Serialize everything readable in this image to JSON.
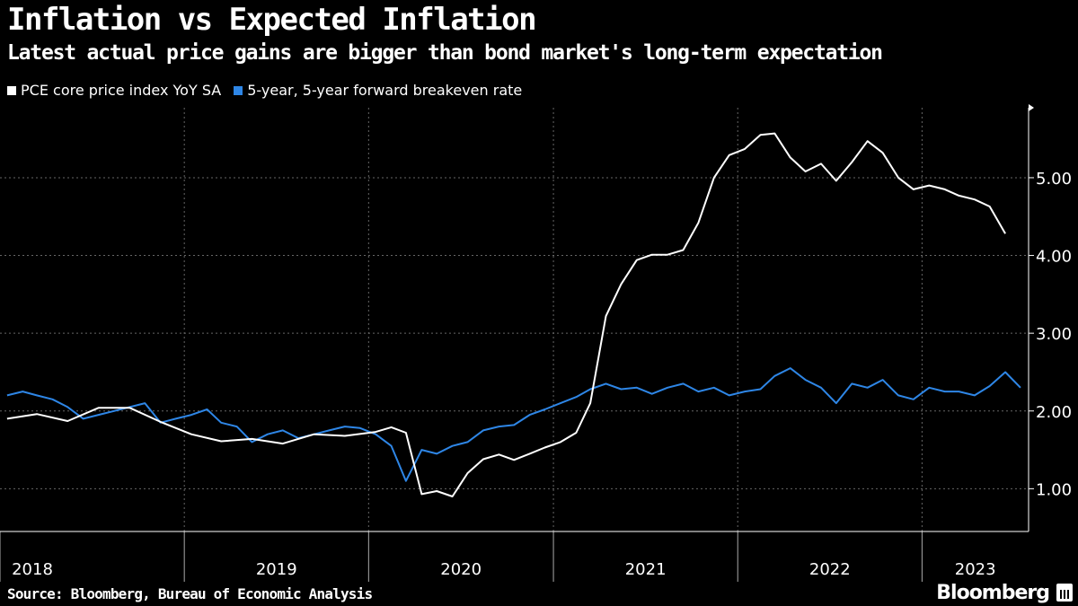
{
  "title": "Inflation vs Expected Inflation",
  "subtitle": "Latest actual price gains are bigger than bond market's long-term expectation",
  "source": "Source: Bloomberg, Bureau of Economic Analysis",
  "brand": "Bloomberg",
  "colors": {
    "pce": "#ffffff",
    "breakeven": "#2e86e6",
    "grid": "#666666",
    "background": "#000000"
  },
  "chart_data": {
    "type": "line",
    "xlabel": "",
    "ylabel": "",
    "xlim": [
      "2018-01-01",
      "2023-07-31"
    ],
    "ylim": [
      0.45,
      5.9
    ],
    "y_ticks": [
      1.0,
      2.0,
      3.0,
      4.0,
      5.0
    ],
    "y_tick_labels": [
      "1.00",
      "2.00",
      "3.00",
      "4.00",
      "5.00"
    ],
    "x_ticks": [
      "2018",
      "2019",
      "2020",
      "2021",
      "2022",
      "2023"
    ],
    "legend_position": "top-left",
    "grid": true,
    "series": [
      {
        "name": "PCE core price index YoY SA",
        "color": "#ffffff",
        "x": [
          "2018-01",
          "2018-03",
          "2018-05",
          "2018-07",
          "2018-09",
          "2018-11",
          "2019-01",
          "2019-03",
          "2019-05",
          "2019-07",
          "2019-09",
          "2019-11",
          "2020-01",
          "2020-02",
          "2020-03",
          "2020-04",
          "2020-05",
          "2020-06",
          "2020-07",
          "2020-08",
          "2020-09",
          "2020-10",
          "2020-11",
          "2020-12",
          "2021-01",
          "2021-02",
          "2021-03",
          "2021-04",
          "2021-05",
          "2021-06",
          "2021-07",
          "2021-08",
          "2021-09",
          "2021-10",
          "2021-11",
          "2021-12",
          "2022-01",
          "2022-02",
          "2022-03",
          "2022-04",
          "2022-05",
          "2022-06",
          "2022-07",
          "2022-08",
          "2022-09",
          "2022-10",
          "2022-11",
          "2022-12",
          "2023-01",
          "2023-02",
          "2023-03",
          "2023-04",
          "2023-05",
          "2023-06"
        ],
        "values": [
          1.9,
          1.96,
          1.87,
          2.04,
          2.04,
          1.86,
          1.7,
          1.61,
          1.64,
          1.58,
          1.7,
          1.68,
          1.73,
          1.79,
          1.72,
          0.93,
          0.97,
          0.9,
          1.2,
          1.38,
          1.44,
          1.37,
          1.45,
          1.53,
          1.6,
          1.72,
          2.1,
          3.22,
          3.63,
          3.94,
          4.01,
          4.01,
          4.07,
          4.42,
          5.0,
          5.29,
          5.37,
          5.55,
          5.57,
          5.26,
          5.08,
          5.18,
          4.96,
          5.2,
          5.47,
          5.32,
          5.0,
          4.85,
          4.9,
          4.85,
          4.77,
          4.72,
          4.63,
          4.28
        ]
      },
      {
        "name": "5-year, 5-year forward breakeven rate",
        "color": "#2e86e6",
        "x": [
          "2018-01",
          "2018-02",
          "2018-03",
          "2018-04",
          "2018-05",
          "2018-06",
          "2018-07",
          "2018-08",
          "2018-09",
          "2018-10",
          "2018-11",
          "2018-12",
          "2019-01",
          "2019-02",
          "2019-03",
          "2019-04",
          "2019-05",
          "2019-06",
          "2019-07",
          "2019-08",
          "2019-09",
          "2019-10",
          "2019-11",
          "2019-12",
          "2020-01",
          "2020-02",
          "2020-03",
          "2020-04",
          "2020-05",
          "2020-06",
          "2020-07",
          "2020-08",
          "2020-09",
          "2020-10",
          "2020-11",
          "2020-12",
          "2021-01",
          "2021-02",
          "2021-03",
          "2021-04",
          "2021-05",
          "2021-06",
          "2021-07",
          "2021-08",
          "2021-09",
          "2021-10",
          "2021-11",
          "2021-12",
          "2022-01",
          "2022-02",
          "2022-03",
          "2022-04",
          "2022-05",
          "2022-06",
          "2022-07",
          "2022-08",
          "2022-09",
          "2022-10",
          "2022-11",
          "2022-12",
          "2023-01",
          "2023-02",
          "2023-03",
          "2023-04",
          "2023-05",
          "2023-06",
          "2023-07"
        ],
        "values": [
          2.2,
          2.25,
          2.2,
          2.15,
          2.05,
          1.9,
          1.95,
          2.0,
          2.05,
          2.1,
          1.85,
          1.9,
          1.95,
          2.02,
          1.85,
          1.8,
          1.6,
          1.7,
          1.75,
          1.65,
          1.7,
          1.75,
          1.8,
          1.78,
          1.7,
          1.55,
          1.1,
          1.5,
          1.45,
          1.55,
          1.6,
          1.75,
          1.8,
          1.82,
          1.95,
          2.02,
          2.1,
          2.18,
          2.28,
          2.35,
          2.28,
          2.3,
          2.22,
          2.3,
          2.35,
          2.25,
          2.3,
          2.2,
          2.25,
          2.28,
          2.45,
          2.55,
          2.4,
          2.3,
          2.1,
          2.35,
          2.3,
          2.4,
          2.2,
          2.15,
          2.3,
          2.25,
          2.25,
          2.2,
          2.32,
          2.5,
          2.3
        ]
      }
    ]
  }
}
